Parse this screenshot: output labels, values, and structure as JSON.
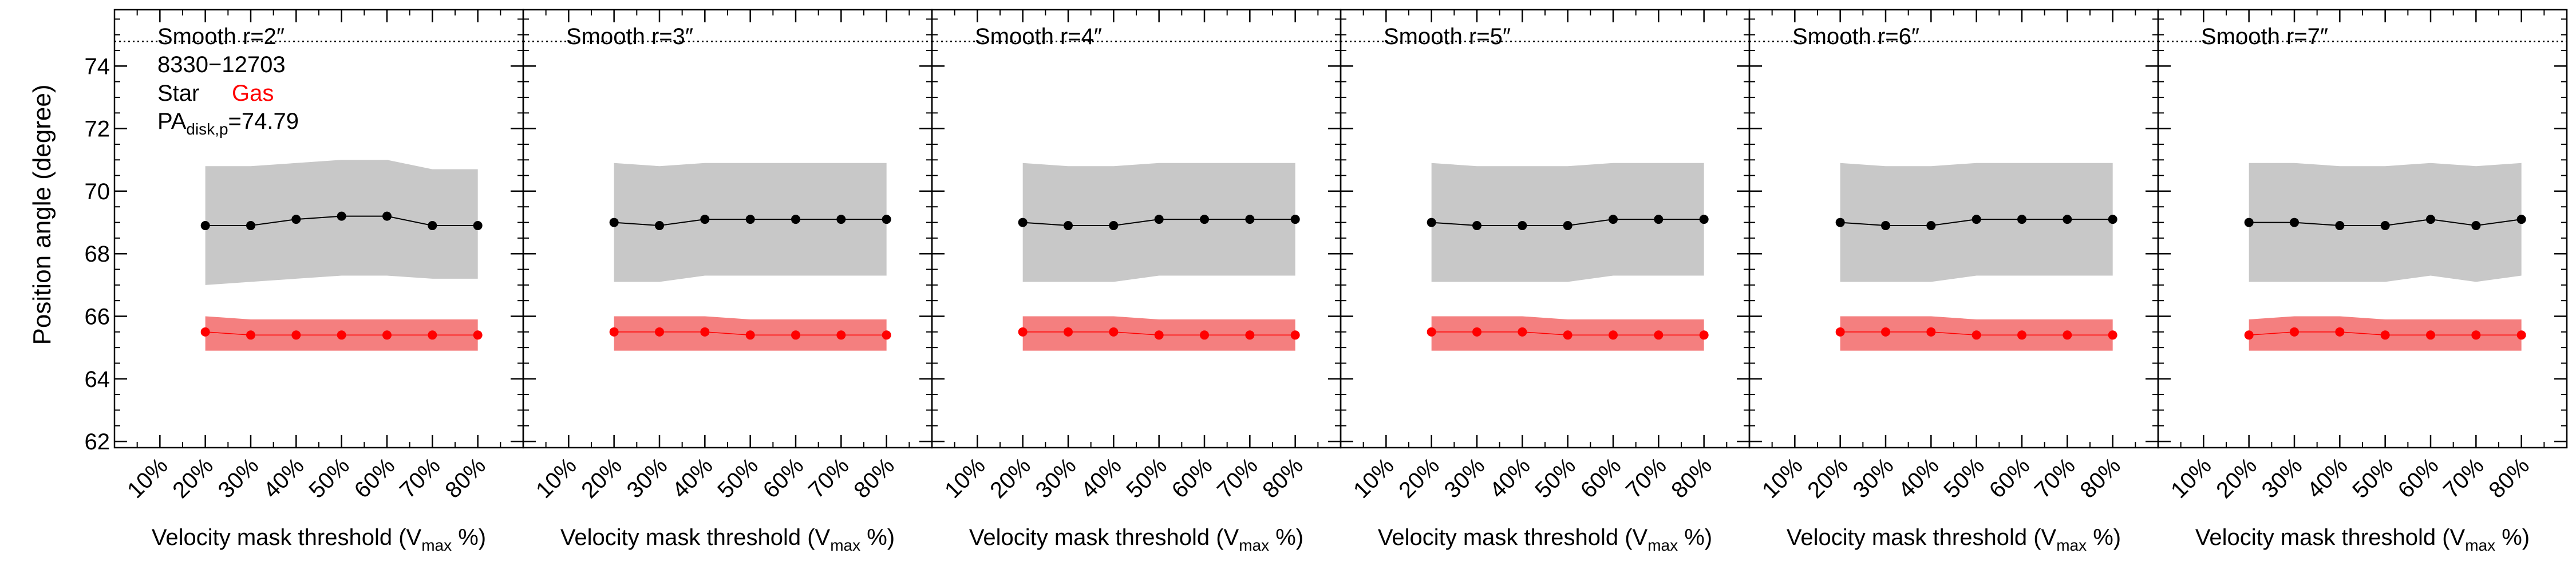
{
  "figure": {
    "ylabel": "Position angle (degree)",
    "xlabel_prefix": "Velocity mask threshold (V",
    "xlabel_sub": "max",
    "xlabel_suffix": " %)",
    "galaxy_id": "8330−12703",
    "legend_star": "Star",
    "legend_gas": "Gas",
    "pa_label_main": "PA",
    "pa_label_sub": "disk,p",
    "pa_label_value": "=74.79"
  },
  "chart_data": {
    "type": "line",
    "x_categories": [
      "10%",
      "20%",
      "30%",
      "40%",
      "50%",
      "60%",
      "70%",
      "80%"
    ],
    "x_values": [
      10,
      20,
      30,
      40,
      50,
      60,
      70,
      80
    ],
    "xlim": [
      0,
      90
    ],
    "ylim": [
      61.8,
      75.8
    ],
    "y_ticks": [
      62,
      64,
      66,
      68,
      70,
      72,
      74
    ],
    "pa_disk": 74.79,
    "colors": {
      "star_line": "#000000",
      "star_band": "#c8c8c8",
      "gas_line": "#ff0000",
      "gas_band": "#f47f7f",
      "gas_label": "#ff0000"
    },
    "panels": [
      {
        "title": "Smooth r=2″",
        "x": [
          20,
          30,
          40,
          50,
          60,
          70,
          80
        ],
        "star": [
          68.9,
          68.9,
          69.1,
          69.2,
          69.2,
          68.9,
          68.9
        ],
        "star_lo": [
          67.0,
          67.1,
          67.2,
          67.3,
          67.3,
          67.2,
          67.2
        ],
        "star_hi": [
          70.8,
          70.8,
          70.9,
          71.0,
          71.0,
          70.7,
          70.7
        ],
        "gas": [
          65.5,
          65.4,
          65.4,
          65.4,
          65.4,
          65.4,
          65.4
        ],
        "gas_lo": [
          64.9,
          64.9,
          64.9,
          64.9,
          64.9,
          64.9,
          64.9
        ],
        "gas_hi": [
          66.0,
          65.9,
          65.9,
          65.9,
          65.9,
          65.9,
          65.9
        ]
      },
      {
        "title": "Smooth r=3″",
        "x": [
          20,
          30,
          40,
          50,
          60,
          70,
          80
        ],
        "star": [
          69.0,
          68.9,
          69.1,
          69.1,
          69.1,
          69.1,
          69.1
        ],
        "star_lo": [
          67.1,
          67.1,
          67.3,
          67.3,
          67.3,
          67.3,
          67.3
        ],
        "star_hi": [
          70.9,
          70.8,
          70.9,
          70.9,
          70.9,
          70.9,
          70.9
        ],
        "gas": [
          65.5,
          65.5,
          65.5,
          65.4,
          65.4,
          65.4,
          65.4
        ],
        "gas_lo": [
          64.9,
          64.9,
          64.9,
          64.9,
          64.9,
          64.9,
          64.9
        ],
        "gas_hi": [
          66.0,
          66.0,
          66.0,
          65.9,
          65.9,
          65.9,
          65.9
        ]
      },
      {
        "title": "Smooth r=4″",
        "x": [
          20,
          30,
          40,
          50,
          60,
          70,
          80
        ],
        "star": [
          69.0,
          68.9,
          68.9,
          69.1,
          69.1,
          69.1,
          69.1
        ],
        "star_lo": [
          67.1,
          67.1,
          67.1,
          67.3,
          67.3,
          67.3,
          67.3
        ],
        "star_hi": [
          70.9,
          70.8,
          70.8,
          70.9,
          70.9,
          70.9,
          70.9
        ],
        "gas": [
          65.5,
          65.5,
          65.5,
          65.4,
          65.4,
          65.4,
          65.4
        ],
        "gas_lo": [
          64.9,
          64.9,
          64.9,
          64.9,
          64.9,
          64.9,
          64.9
        ],
        "gas_hi": [
          66.0,
          66.0,
          66.0,
          65.9,
          65.9,
          65.9,
          65.9
        ]
      },
      {
        "title": "Smooth r=5″",
        "x": [
          20,
          30,
          40,
          50,
          60,
          70,
          80
        ],
        "star": [
          69.0,
          68.9,
          68.9,
          68.9,
          69.1,
          69.1,
          69.1
        ],
        "star_lo": [
          67.1,
          67.1,
          67.1,
          67.1,
          67.3,
          67.3,
          67.3
        ],
        "star_hi": [
          70.9,
          70.8,
          70.8,
          70.8,
          70.9,
          70.9,
          70.9
        ],
        "gas": [
          65.5,
          65.5,
          65.5,
          65.4,
          65.4,
          65.4,
          65.4
        ],
        "gas_lo": [
          64.9,
          64.9,
          64.9,
          64.9,
          64.9,
          64.9,
          64.9
        ],
        "gas_hi": [
          66.0,
          66.0,
          66.0,
          65.9,
          65.9,
          65.9,
          65.9
        ]
      },
      {
        "title": "Smooth r=6″",
        "x": [
          20,
          30,
          40,
          50,
          60,
          70,
          80
        ],
        "star": [
          69.0,
          68.9,
          68.9,
          69.1,
          69.1,
          69.1,
          69.1
        ],
        "star_lo": [
          67.1,
          67.1,
          67.1,
          67.3,
          67.3,
          67.3,
          67.3
        ],
        "star_hi": [
          70.9,
          70.8,
          70.8,
          70.9,
          70.9,
          70.9,
          70.9
        ],
        "gas": [
          65.5,
          65.5,
          65.5,
          65.4,
          65.4,
          65.4,
          65.4
        ],
        "gas_lo": [
          64.9,
          64.9,
          64.9,
          64.9,
          64.9,
          64.9,
          64.9
        ],
        "gas_hi": [
          66.0,
          66.0,
          66.0,
          65.9,
          65.9,
          65.9,
          65.9
        ]
      },
      {
        "title": "Smooth r=7″",
        "x": [
          20,
          30,
          40,
          50,
          60,
          70,
          80
        ],
        "star": [
          69.0,
          69.0,
          68.9,
          68.9,
          69.1,
          68.9,
          69.1
        ],
        "star_lo": [
          67.1,
          67.1,
          67.1,
          67.1,
          67.3,
          67.1,
          67.3
        ],
        "star_hi": [
          70.9,
          70.9,
          70.8,
          70.8,
          70.9,
          70.8,
          70.9
        ],
        "gas": [
          65.4,
          65.5,
          65.5,
          65.4,
          65.4,
          65.4,
          65.4
        ],
        "gas_lo": [
          64.9,
          64.9,
          64.9,
          64.9,
          64.9,
          64.9,
          64.9
        ],
        "gas_hi": [
          65.9,
          66.0,
          66.0,
          65.9,
          65.9,
          65.9,
          65.9
        ]
      }
    ]
  }
}
